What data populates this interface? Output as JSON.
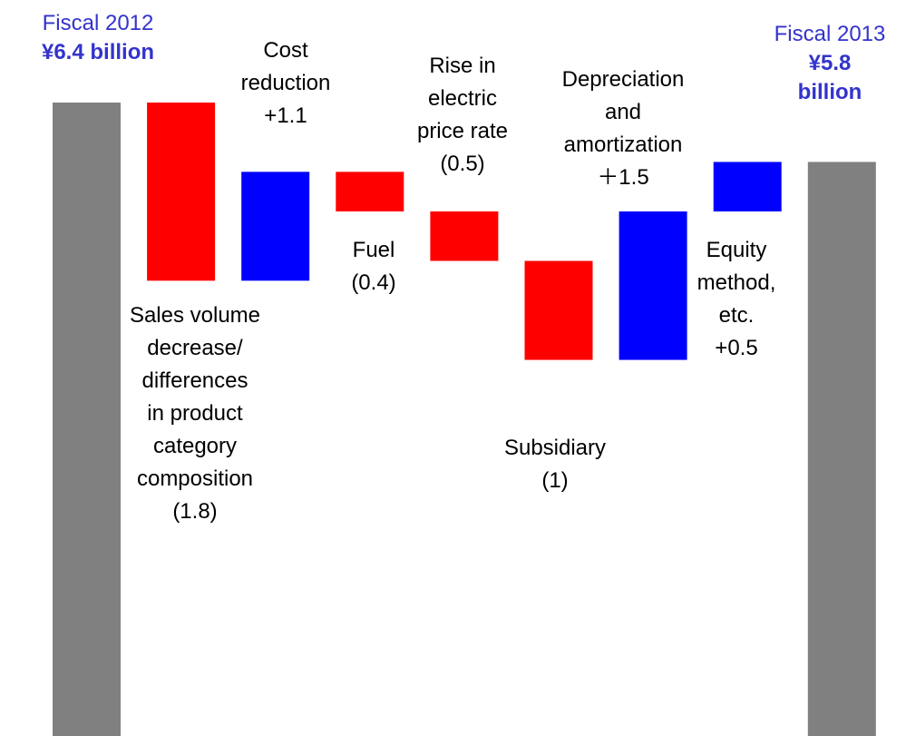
{
  "chart_data": {
    "type": "waterfall",
    "start": {
      "name": "Fiscal 2012",
      "value": 6.4,
      "value_label": "¥6.4 billion"
    },
    "end": {
      "name": "Fiscal 2013",
      "value": 5.8,
      "value_label": "¥5.8\nbillion"
    },
    "categories": [
      "Sales volume\ndecrease/\ndifferences\nin product\ncategory\ncomposition",
      "Cost\nreduction",
      "Fuel",
      "Rise in\nelectric\nprice rate",
      "Subsidiary",
      "Depreciation\nand\namortization",
      "Equity\nmethod,\netc."
    ],
    "values": [
      -1.8,
      1.1,
      -0.4,
      -0.5,
      -1,
      1.5,
      0.5
    ],
    "value_labels": [
      "(1.8)",
      "+1.1",
      "(0.4)",
      "(0.5)",
      "(1)",
      "＋1.5",
      "+0.5"
    ],
    "colors": {
      "increase": "#0000ff",
      "decrease": "#ff0000",
      "total": "#808080"
    },
    "total_label_color": "#3333cc"
  }
}
